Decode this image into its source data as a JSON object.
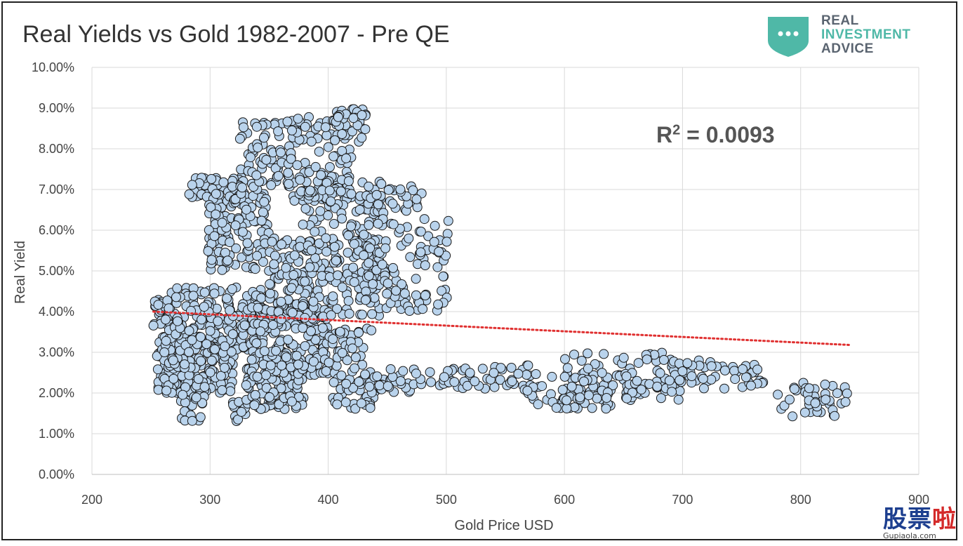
{
  "title": "Real Yields vs Gold 1982-2007 - Pre QE",
  "logo": {
    "line1": "REAL",
    "line2": "INVESTMENT",
    "line3": "ADVICE",
    "badge_color": "#4fb8a7",
    "icon": "ellipsis-shield-icon"
  },
  "annotation": {
    "prefix": "R",
    "sup": "2",
    "suffix": " = 0.0093"
  },
  "watermark": {
    "cn_1": "股票",
    "cn_2": "啦",
    "url": "Gupiaola.com"
  },
  "chart_data": {
    "type": "scatter",
    "title": "Real Yields vs Gold 1982-2007 - Pre QE",
    "xlabel": "Gold Price USD",
    "ylabel": "Real Yield",
    "xlim": [
      200,
      900
    ],
    "ylim": [
      0,
      10
    ],
    "x_ticks": [
      "200",
      "300",
      "400",
      "500",
      "600",
      "700",
      "800",
      "900"
    ],
    "y_ticks": [
      "0.00%",
      "1.00%",
      "2.00%",
      "3.00%",
      "4.00%",
      "5.00%",
      "6.00%",
      "7.00%",
      "8.00%",
      "9.00%",
      "10.00%"
    ],
    "grid": true,
    "marker_fill": "#b9d3ec",
    "marker_edge": "#1a1a1a",
    "trendline": {
      "type": "linear",
      "color": "#e03030",
      "style": "dotted",
      "x": [
        252,
        842
      ],
      "y": [
        4.0,
        3.18
      ],
      "r_squared": 0.0093
    },
    "clusters": [
      {
        "x": [
          252,
          268
        ],
        "y": [
          3.6,
          4.3
        ],
        "n": 35
      },
      {
        "x": [
          255,
          320
        ],
        "y": [
          2.0,
          3.4
        ],
        "n": 220
      },
      {
        "x": [
          262,
          345
        ],
        "y": [
          3.0,
          4.6
        ],
        "n": 170
      },
      {
        "x": [
          275,
          295
        ],
        "y": [
          1.3,
          2.0
        ],
        "n": 20
      },
      {
        "x": [
          282,
          330
        ],
        "y": [
          6.8,
          7.3
        ],
        "n": 40
      },
      {
        "x": [
          298,
          350
        ],
        "y": [
          5.0,
          6.9
        ],
        "n": 130
      },
      {
        "x": [
          318,
          332
        ],
        "y": [
          1.3,
          1.8
        ],
        "n": 14
      },
      {
        "x": [
          325,
          362
        ],
        "y": [
          7.0,
          8.7
        ],
        "n": 60
      },
      {
        "x": [
          330,
          380
        ],
        "y": [
          1.6,
          2.6
        ],
        "n": 90
      },
      {
        "x": [
          335,
          400
        ],
        "y": [
          2.4,
          4.2
        ],
        "n": 190
      },
      {
        "x": [
          350,
          445
        ],
        "y": [
          3.8,
          5.8
        ],
        "n": 200
      },
      {
        "x": [
          365,
          420
        ],
        "y": [
          6.7,
          8.8
        ],
        "n": 110
      },
      {
        "x": [
          375,
          450
        ],
        "y": [
          5.4,
          7.0
        ],
        "n": 80
      },
      {
        "x": [
          400,
          440
        ],
        "y": [
          1.6,
          3.6
        ],
        "n": 80
      },
      {
        "x": [
          405,
          432
        ],
        "y": [
          8.1,
          9.1
        ],
        "n": 35
      },
      {
        "x": [
          425,
          480
        ],
        "y": [
          6.4,
          7.2
        ],
        "n": 40
      },
      {
        "x": [
          430,
          505
        ],
        "y": [
          4.0,
          6.3
        ],
        "n": 110
      },
      {
        "x": [
          440,
          470
        ],
        "y": [
          2.0,
          2.6
        ],
        "n": 25
      },
      {
        "x": [
          470,
          590
        ],
        "y": [
          2.1,
          2.7
        ],
        "n": 60
      },
      {
        "x": [
          565,
          640
        ],
        "y": [
          1.6,
          2.2
        ],
        "n": 45
      },
      {
        "x": [
          600,
          700
        ],
        "y": [
          1.8,
          3.0
        ],
        "n": 110
      },
      {
        "x": [
          690,
          770
        ],
        "y": [
          2.1,
          2.8
        ],
        "n": 45
      },
      {
        "x": [
          780,
          842
        ],
        "y": [
          1.4,
          2.3
        ],
        "n": 40
      }
    ]
  }
}
